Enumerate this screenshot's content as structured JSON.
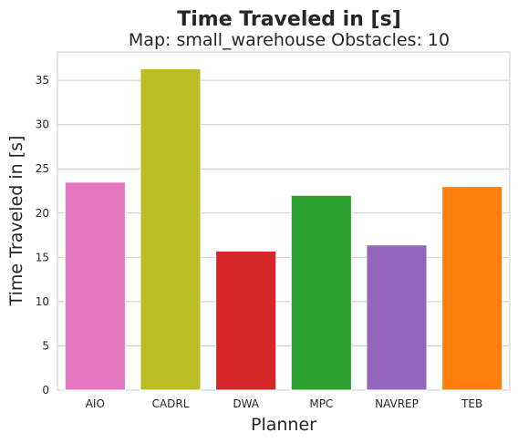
{
  "chart_data": {
    "type": "bar",
    "title": "Time Traveled in [s]",
    "subtitle": "Map: small_warehouse Obstacles: 10",
    "xlabel": "Planner",
    "ylabel": "Time Traveled in [s]",
    "categories": [
      "AIO",
      "CADRL",
      "DWA",
      "MPC",
      "NAVREP",
      "TEB"
    ],
    "values": [
      23.5,
      36.3,
      15.7,
      22.0,
      16.4,
      23.0
    ],
    "colors": [
      "#e377c2",
      "#bcbd22",
      "#d62728",
      "#2ca02c",
      "#9467bd",
      "#ff7f0e"
    ],
    "ylim": [
      0,
      38.2
    ],
    "yticks": [
      0,
      5,
      10,
      15,
      20,
      25,
      30,
      35
    ],
    "grid": "horizontal",
    "legend": "none"
  }
}
